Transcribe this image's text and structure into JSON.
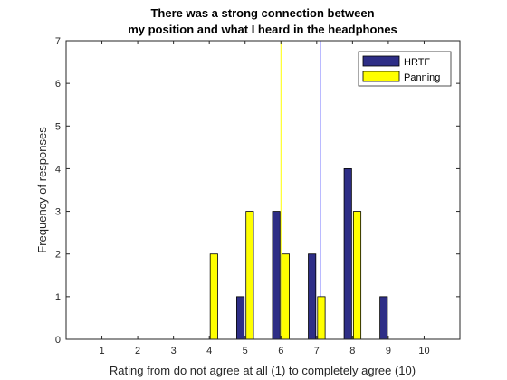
{
  "chart_data": {
    "type": "bar",
    "title": [
      "There was a strong connection between",
      "my position and what I heard in the headphones"
    ],
    "xlabel": "Rating from do not agree at all (1) to completely agree (10)",
    "ylabel": "Frequency of responses",
    "categories": [
      "1",
      "2",
      "3",
      "4",
      "5",
      "6",
      "7",
      "8",
      "9",
      "10"
    ],
    "x": [
      1,
      2,
      3,
      4,
      5,
      6,
      7,
      8,
      9,
      10
    ],
    "xlim": [
      0,
      11
    ],
    "ylim": [
      0,
      7
    ],
    "yticks": [
      0,
      1,
      2,
      3,
      4,
      5,
      6,
      7
    ],
    "series": [
      {
        "name": "HRTF",
        "color": "#2e2e86",
        "values": [
          0,
          0,
          0,
          0,
          1,
          3,
          2,
          4,
          1,
          0
        ]
      },
      {
        "name": "Panning",
        "color": "#ffff00",
        "values": [
          0,
          0,
          0,
          2,
          3,
          2,
          1,
          3,
          0,
          0
        ]
      }
    ],
    "reference_lines": [
      {
        "series": "HRTF",
        "x": 7.1,
        "color": "#0000ff"
      },
      {
        "series": "Panning",
        "x": 6.0,
        "color": "#ffff00"
      }
    ],
    "legend_position": "top-right",
    "grid": false
  }
}
